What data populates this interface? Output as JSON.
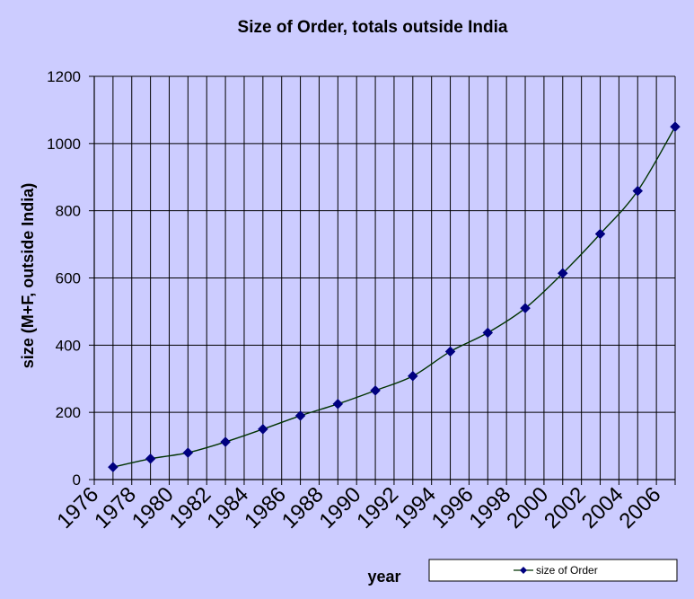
{
  "chart_data": {
    "type": "line",
    "title": "Size of Order, totals outside India",
    "xlabel": "year",
    "ylabel": "size  (M+F, outside India)",
    "ylim": [
      0,
      1200
    ],
    "yticks": [
      0,
      200,
      400,
      600,
      800,
      1000,
      1200
    ],
    "xlim": [
      1976,
      2007
    ],
    "xticks": [
      1976,
      1978,
      1980,
      1982,
      1984,
      1986,
      1988,
      1990,
      1992,
      1994,
      1996,
      1998,
      2000,
      2002,
      2004,
      2006
    ],
    "grid": true,
    "legend": "bottom-right",
    "series": [
      {
        "name": "size of Order",
        "color": "#000080",
        "line_color": "#003300",
        "marker": "diamond",
        "x": [
          1977,
          1979,
          1981,
          1983,
          1985,
          1987,
          1989,
          1991,
          1993,
          1995,
          1997,
          1999,
          2001,
          2003,
          2005,
          2007
        ],
        "y": [
          37,
          62,
          80,
          112,
          150,
          190,
          225,
          265,
          308,
          381,
          437,
          510,
          614,
          731,
          859,
          1050
        ]
      }
    ],
    "plot_background": "#ccccff",
    "grid_color": "#000000"
  }
}
